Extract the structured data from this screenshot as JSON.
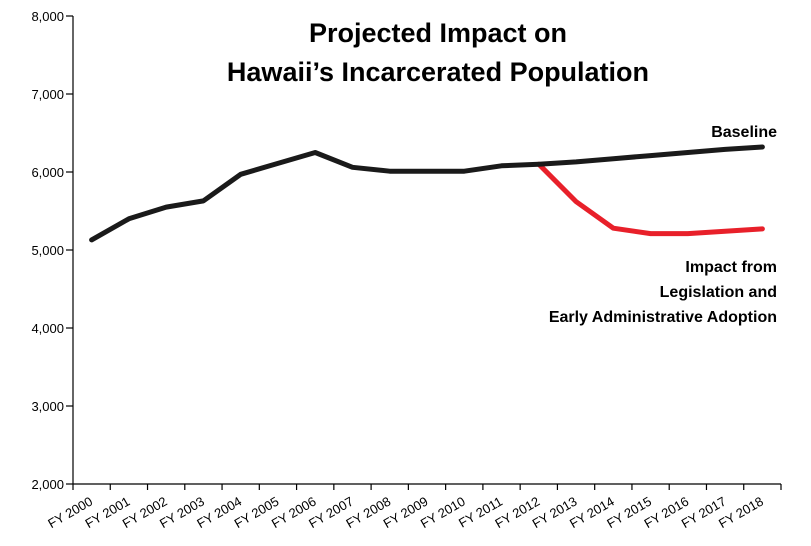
{
  "chart_data": {
    "type": "line",
    "title_lines": [
      "Projected Impact on",
      "Hawaii’s Incarcerated Population"
    ],
    "xlabel": "",
    "ylabel": "",
    "ylim": [
      2000,
      8000
    ],
    "yticks": [
      "2,000",
      "3,000",
      "4,000",
      "5,000",
      "6,000",
      "7,000",
      "8,000"
    ],
    "categories": [
      "FY 2000",
      "FY 2001",
      "FY 2002",
      "FY 2003",
      "FY 2004",
      "FY 2005",
      "FY 2006",
      "FY 2007",
      "FY 2008",
      "FY 2009",
      "FY 2010",
      "FY 2011",
      "FY 2012",
      "FY 2013",
      "FY 2014",
      "FY 2015",
      "FY 2016",
      "FY 2017",
      "FY 2018"
    ],
    "grid": false,
    "legend": "none",
    "series": [
      {
        "name": "Baseline",
        "label_lines": [
          "Baseline"
        ],
        "color": "#1a1a1a",
        "values": [
          5130,
          5400,
          5550,
          5630,
          5970,
          6110,
          6250,
          6060,
          6010,
          6010,
          6010,
          6080,
          6100,
          6130,
          6170,
          6210,
          6250,
          6290,
          6320
        ]
      },
      {
        "name": "Impact from Legislation and Early Administrative Adoption",
        "label_lines": [
          "Impact from",
          "Legislation and",
          "Early Administrative Adoption"
        ],
        "color": "#e8202a",
        "values": [
          null,
          null,
          null,
          null,
          null,
          null,
          null,
          null,
          null,
          null,
          null,
          null,
          6100,
          5620,
          5280,
          5210,
          5210,
          5240,
          5270
        ]
      }
    ]
  }
}
